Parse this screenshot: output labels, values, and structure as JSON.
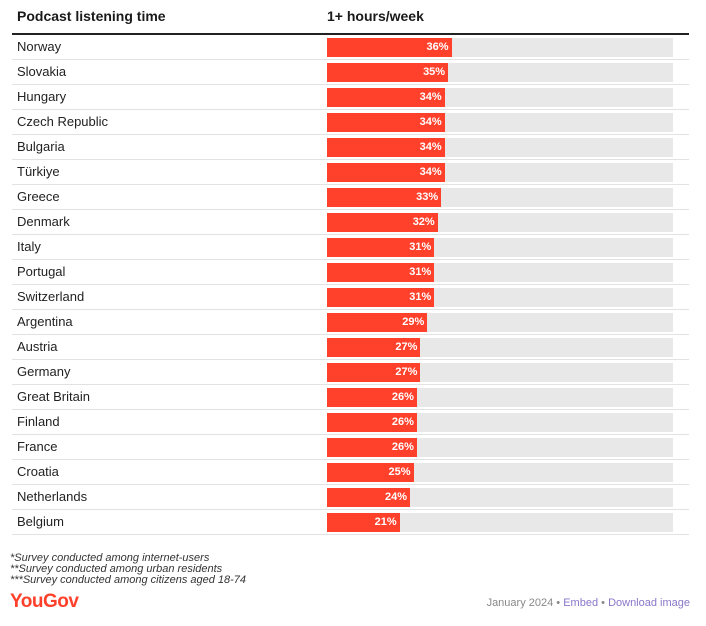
{
  "chart_data": {
    "type": "bar",
    "orientation": "horizontal",
    "column_headers": [
      "Podcast listening time",
      "1+ hours/week"
    ],
    "categories": [
      "Norway",
      "Slovakia",
      "Hungary",
      "Czech Republic",
      "Bulgaria",
      "Türkiye",
      "Greece",
      "Denmark",
      "Italy",
      "Portugal",
      "Switzerland",
      "Argentina",
      "Austria",
      "Germany",
      "Great Britain",
      "Finland",
      "France",
      "Croatia",
      "Netherlands",
      "Belgium"
    ],
    "values": [
      36,
      35,
      34,
      34,
      34,
      34,
      33,
      32,
      31,
      31,
      31,
      29,
      27,
      27,
      26,
      26,
      26,
      25,
      24,
      21
    ],
    "value_labels": [
      "36%",
      "35%",
      "34%",
      "34%",
      "34%",
      "34%",
      "33%",
      "32%",
      "31%",
      "31%",
      "31%",
      "29%",
      "27%",
      "27%",
      "26%",
      "26%",
      "26%",
      "25%",
      "24%",
      "21%"
    ],
    "xlim": [
      0,
      100
    ],
    "bar_color": "#ff412c",
    "track_color": "#e8e8e8"
  },
  "notes": [
    "*Survey conducted among internet-users",
    "**Survey conducted among urban residents",
    "***Survey conducted among citizens aged 18-74"
  ],
  "footer": {
    "logo": "YouGov",
    "date": "January 2024",
    "separator": "•",
    "embed": "Embed",
    "download": "Download image"
  }
}
